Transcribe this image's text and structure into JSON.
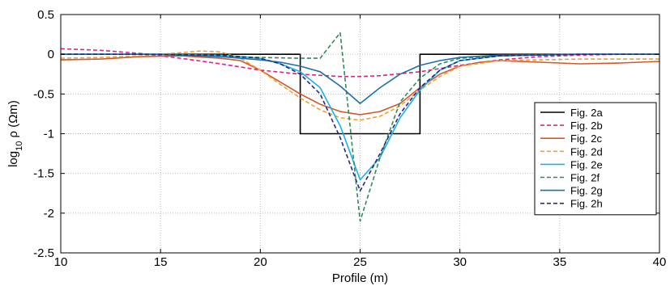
{
  "chart_data": {
    "type": "line",
    "title": "",
    "xlabel": "Profile (m)",
    "ylabel_main": "log",
    "ylabel_sub": "10",
    "ylabel_rest": " ρ (Ωm)",
    "xlim": [
      10,
      40
    ],
    "ylim": [
      -2.5,
      0.5
    ],
    "xticks": [
      10,
      15,
      20,
      25,
      30,
      35,
      40
    ],
    "yticks": [
      0.5,
      0,
      -0.5,
      -1,
      -1.5,
      -2,
      -2.5
    ],
    "xtick_labels": [
      "10",
      "15",
      "20",
      "25",
      "30",
      "35",
      "40"
    ],
    "ytick_labels": [
      "0.5",
      "0",
      "-0.5",
      "-1",
      "-1.5",
      "-2",
      "-2.5"
    ],
    "grid": true,
    "legend_position": "right",
    "series": [
      {
        "name": "Fig. 2a",
        "color": "#000000",
        "dash": "solid",
        "x": [
          10,
          22,
          22,
          28,
          28,
          40
        ],
        "y": [
          0,
          0,
          -1,
          -1,
          0,
          0
        ]
      },
      {
        "name": "Fig. 2b",
        "color": "#e0208e",
        "dash": "dashed",
        "x": [
          10,
          12,
          14,
          16,
          18,
          20,
          22,
          24,
          25,
          26,
          28,
          30,
          32,
          34,
          36,
          38,
          40
        ],
        "y": [
          0.07,
          0.05,
          0.01,
          -0.05,
          -0.12,
          -0.2,
          -0.25,
          -0.28,
          -0.28,
          -0.27,
          -0.22,
          -0.14,
          -0.07,
          -0.03,
          -0.01,
          0,
          0
        ]
      },
      {
        "name": "Fig. 2c",
        "color": "#d2572a",
        "dash": "solid",
        "x": [
          10,
          12,
          14,
          16,
          18,
          19,
          20,
          21,
          22,
          23,
          24,
          25,
          26,
          27,
          28,
          29,
          30,
          31,
          32,
          34,
          36,
          38,
          40
        ],
        "y": [
          -0.07,
          -0.06,
          -0.03,
          -0.02,
          -0.05,
          -0.08,
          -0.2,
          -0.35,
          -0.5,
          -0.63,
          -0.72,
          -0.76,
          -0.72,
          -0.62,
          -0.42,
          -0.25,
          -0.15,
          -0.1,
          -0.08,
          -0.1,
          -0.12,
          -0.11,
          -0.09
        ]
      },
      {
        "name": "Fig. 2d",
        "color": "#f0a030",
        "dash": "dashed",
        "x": [
          10,
          12,
          14,
          16,
          17,
          18,
          19,
          20,
          21,
          22,
          23,
          24,
          25,
          26,
          27,
          28,
          29,
          30,
          32,
          34,
          36,
          38,
          40
        ],
        "y": [
          -0.05,
          -0.04,
          -0.02,
          0.02,
          0.04,
          0.03,
          -0.05,
          -0.2,
          -0.38,
          -0.55,
          -0.7,
          -0.8,
          -0.83,
          -0.78,
          -0.65,
          -0.45,
          -0.28,
          -0.15,
          -0.08,
          -0.07,
          -0.06,
          -0.06,
          -0.06
        ]
      },
      {
        "name": "Fig. 2e",
        "color": "#1ab0e8",
        "dash": "solid",
        "x": [
          10,
          14,
          18,
          20,
          21,
          22,
          23,
          24,
          25,
          26,
          27,
          28,
          29,
          30,
          32,
          36,
          40
        ],
        "y": [
          0,
          0,
          -0.01,
          -0.05,
          -0.12,
          -0.22,
          -0.42,
          -0.9,
          -1.58,
          -1.3,
          -0.8,
          -0.45,
          -0.2,
          -0.08,
          -0.02,
          0,
          0
        ]
      },
      {
        "name": "Fig. 2f",
        "color": "#2e8a5a",
        "dash": "dashed",
        "x": [
          10,
          15,
          18,
          20,
          22,
          23,
          24,
          25,
          26,
          27,
          28,
          29,
          30,
          32,
          36,
          40
        ],
        "y": [
          0,
          0,
          -0.03,
          -0.04,
          -0.05,
          -0.05,
          0.27,
          -2.1,
          -1.3,
          -0.6,
          -0.3,
          -0.12,
          -0.05,
          -0.02,
          0,
          0
        ]
      },
      {
        "name": "Fig. 2g",
        "color": "#1e6ea6",
        "dash": "solid",
        "x": [
          10,
          15,
          18,
          20,
          21,
          22,
          23,
          24,
          25,
          26,
          27,
          28,
          29,
          30,
          32,
          36,
          40
        ],
        "y": [
          0,
          0,
          -0.03,
          -0.07,
          -0.1,
          -0.15,
          -0.22,
          -0.4,
          -0.62,
          -0.42,
          -0.25,
          -0.14,
          -0.08,
          -0.04,
          -0.01,
          0,
          0
        ]
      },
      {
        "name": "Fig. 2h",
        "color": "#262880",
        "dash": "dashed",
        "x": [
          10,
          14,
          18,
          20,
          21,
          22,
          23,
          24,
          25,
          26,
          27,
          28,
          29,
          30,
          32,
          36,
          40
        ],
        "y": [
          0,
          0,
          -0.01,
          -0.05,
          -0.12,
          -0.25,
          -0.5,
          -1.05,
          -1.72,
          -1.25,
          -0.75,
          -0.42,
          -0.2,
          -0.08,
          -0.02,
          0,
          0
        ]
      }
    ]
  }
}
